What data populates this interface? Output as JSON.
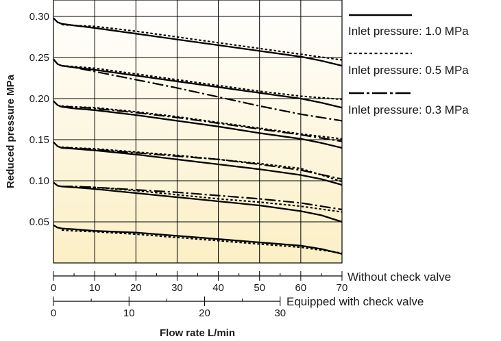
{
  "chart_data": {
    "type": "line",
    "title": "",
    "xlabel": "Flow rate L/min",
    "ylabel": "Reduced pressure  MPa",
    "xlim": [
      0,
      70
    ],
    "ylim": [
      0,
      0.32
    ],
    "yticks": [
      "0.05",
      "0.10",
      "0.15",
      "0.20",
      "0.25",
      "0.30"
    ],
    "grid": true,
    "legend_position": "right",
    "x_scale_without_check_valve": {
      "label": "Without check valve",
      "ticks": [
        "0",
        "10",
        "20",
        "30",
        "40",
        "50",
        "60",
        "70"
      ]
    },
    "x_scale_with_check_valve": {
      "label": "Equipped with check valve",
      "ticks": [
        "0",
        "10",
        "20",
        "30"
      ]
    },
    "legend": [
      {
        "name": "Inlet pressure: 1.0 MPa",
        "style": "solid"
      },
      {
        "name": "Inlet pressure: 0.5 MPa",
        "style": "dotted"
      },
      {
        "name": "Inlet pressure: 0.3 MPa",
        "style": "dashdot"
      }
    ],
    "series": [
      {
        "inlet": "1.0 MPa",
        "set": 0.3,
        "x": [
          0,
          1,
          2,
          5,
          10,
          20,
          30,
          40,
          50,
          60,
          65,
          70
        ],
        "y": [
          0.298,
          0.293,
          0.291,
          0.289,
          0.286,
          0.279,
          0.272,
          0.265,
          0.258,
          0.251,
          0.246,
          0.24
        ]
      },
      {
        "inlet": "0.5 MPa",
        "set": 0.3,
        "x": [
          2,
          5,
          10,
          20,
          30,
          40,
          50,
          60,
          70
        ],
        "y": [
          0.29,
          0.289,
          0.288,
          0.282,
          0.275,
          0.268,
          0.261,
          0.254,
          0.247
        ]
      },
      {
        "inlet": "1.0 MPa",
        "set": 0.25,
        "x": [
          0,
          1,
          2,
          5,
          10,
          20,
          30,
          40,
          50,
          60,
          65,
          70
        ],
        "y": [
          0.248,
          0.242,
          0.24,
          0.238,
          0.235,
          0.228,
          0.221,
          0.214,
          0.207,
          0.2,
          0.195,
          0.189
        ]
      },
      {
        "inlet": "0.5 MPa",
        "set": 0.25,
        "x": [
          2,
          5,
          10,
          20,
          30,
          40,
          50,
          60,
          70
        ],
        "y": [
          0.24,
          0.239,
          0.237,
          0.23,
          0.223,
          0.216,
          0.209,
          0.203,
          0.199
        ]
      },
      {
        "inlet": "0.3 MPa",
        "set": 0.25,
        "x": [
          2,
          5,
          10,
          20,
          30,
          40,
          50,
          60,
          70
        ],
        "y": [
          0.24,
          0.238,
          0.233,
          0.223,
          0.213,
          0.202,
          0.191,
          0.181,
          0.173
        ]
      },
      {
        "inlet": "1.0 MPa",
        "set": 0.2,
        "x": [
          0,
          1,
          2,
          5,
          10,
          20,
          30,
          40,
          50,
          60,
          65,
          70
        ],
        "y": [
          0.197,
          0.192,
          0.19,
          0.188,
          0.186,
          0.18,
          0.173,
          0.166,
          0.158,
          0.151,
          0.146,
          0.14
        ]
      },
      {
        "inlet": "0.5 MPa",
        "set": 0.2,
        "x": [
          2,
          5,
          10,
          20,
          30,
          40,
          50,
          60,
          70
        ],
        "y": [
          0.191,
          0.19,
          0.189,
          0.184,
          0.178,
          0.171,
          0.164,
          0.157,
          0.151
        ]
      },
      {
        "inlet": "0.3 MPa",
        "set": 0.2,
        "x": [
          2,
          5,
          10,
          20,
          30,
          40,
          50,
          60,
          70
        ],
        "y": [
          0.19,
          0.19,
          0.188,
          0.183,
          0.177,
          0.17,
          0.163,
          0.156,
          0.148
        ]
      },
      {
        "inlet": "1.0 MPa",
        "set": 0.15,
        "x": [
          0,
          1,
          2,
          5,
          10,
          20,
          30,
          40,
          50,
          60,
          65,
          70
        ],
        "y": [
          0.147,
          0.142,
          0.14,
          0.139,
          0.137,
          0.132,
          0.126,
          0.12,
          0.114,
          0.107,
          0.102,
          0.095
        ]
      },
      {
        "inlet": "0.5 MPa",
        "set": 0.15,
        "x": [
          2,
          5,
          10,
          20,
          30,
          40,
          50,
          60,
          70
        ],
        "y": [
          0.141,
          0.14,
          0.139,
          0.135,
          0.131,
          0.126,
          0.121,
          0.115,
          0.099
        ]
      },
      {
        "inlet": "0.3 MPa",
        "set": 0.15,
        "x": [
          2,
          5,
          10,
          20,
          30,
          40,
          50,
          60,
          70
        ],
        "y": [
          0.14,
          0.14,
          0.138,
          0.134,
          0.13,
          0.126,
          0.12,
          0.113,
          0.102
        ]
      },
      {
        "inlet": "1.0 MPa",
        "set": 0.1,
        "x": [
          0,
          1,
          2,
          5,
          10,
          20,
          30,
          40,
          50,
          60,
          65,
          70
        ],
        "y": [
          0.098,
          0.094,
          0.093,
          0.092,
          0.09,
          0.085,
          0.08,
          0.075,
          0.07,
          0.063,
          0.058,
          0.05
        ]
      },
      {
        "inlet": "0.5 MPa",
        "set": 0.1,
        "x": [
          2,
          5,
          10,
          20,
          30,
          40,
          50,
          60,
          70
        ],
        "y": [
          0.093,
          0.093,
          0.092,
          0.088,
          0.083,
          0.078,
          0.074,
          0.069,
          0.062
        ]
      },
      {
        "inlet": "0.3 MPa",
        "set": 0.1,
        "x": [
          2,
          5,
          10,
          20,
          30,
          40,
          50,
          60,
          70
        ],
        "y": [
          0.093,
          0.093,
          0.092,
          0.089,
          0.086,
          0.082,
          0.078,
          0.073,
          0.065
        ]
      },
      {
        "inlet": "1.0 MPa",
        "set": 0.05,
        "x": [
          0,
          1,
          2,
          5,
          10,
          20,
          30,
          40,
          50,
          60,
          65,
          70
        ],
        "y": [
          0.046,
          0.043,
          0.042,
          0.041,
          0.039,
          0.037,
          0.033,
          0.029,
          0.025,
          0.021,
          0.017,
          0.011
        ]
      },
      {
        "inlet": "0.5 MPa",
        "set": 0.05,
        "x": [
          2,
          5,
          10,
          20,
          30,
          40,
          50,
          60,
          70
        ],
        "y": [
          0.04,
          0.039,
          0.038,
          0.035,
          0.031,
          0.027,
          0.023,
          0.019,
          0.012
        ]
      }
    ]
  }
}
